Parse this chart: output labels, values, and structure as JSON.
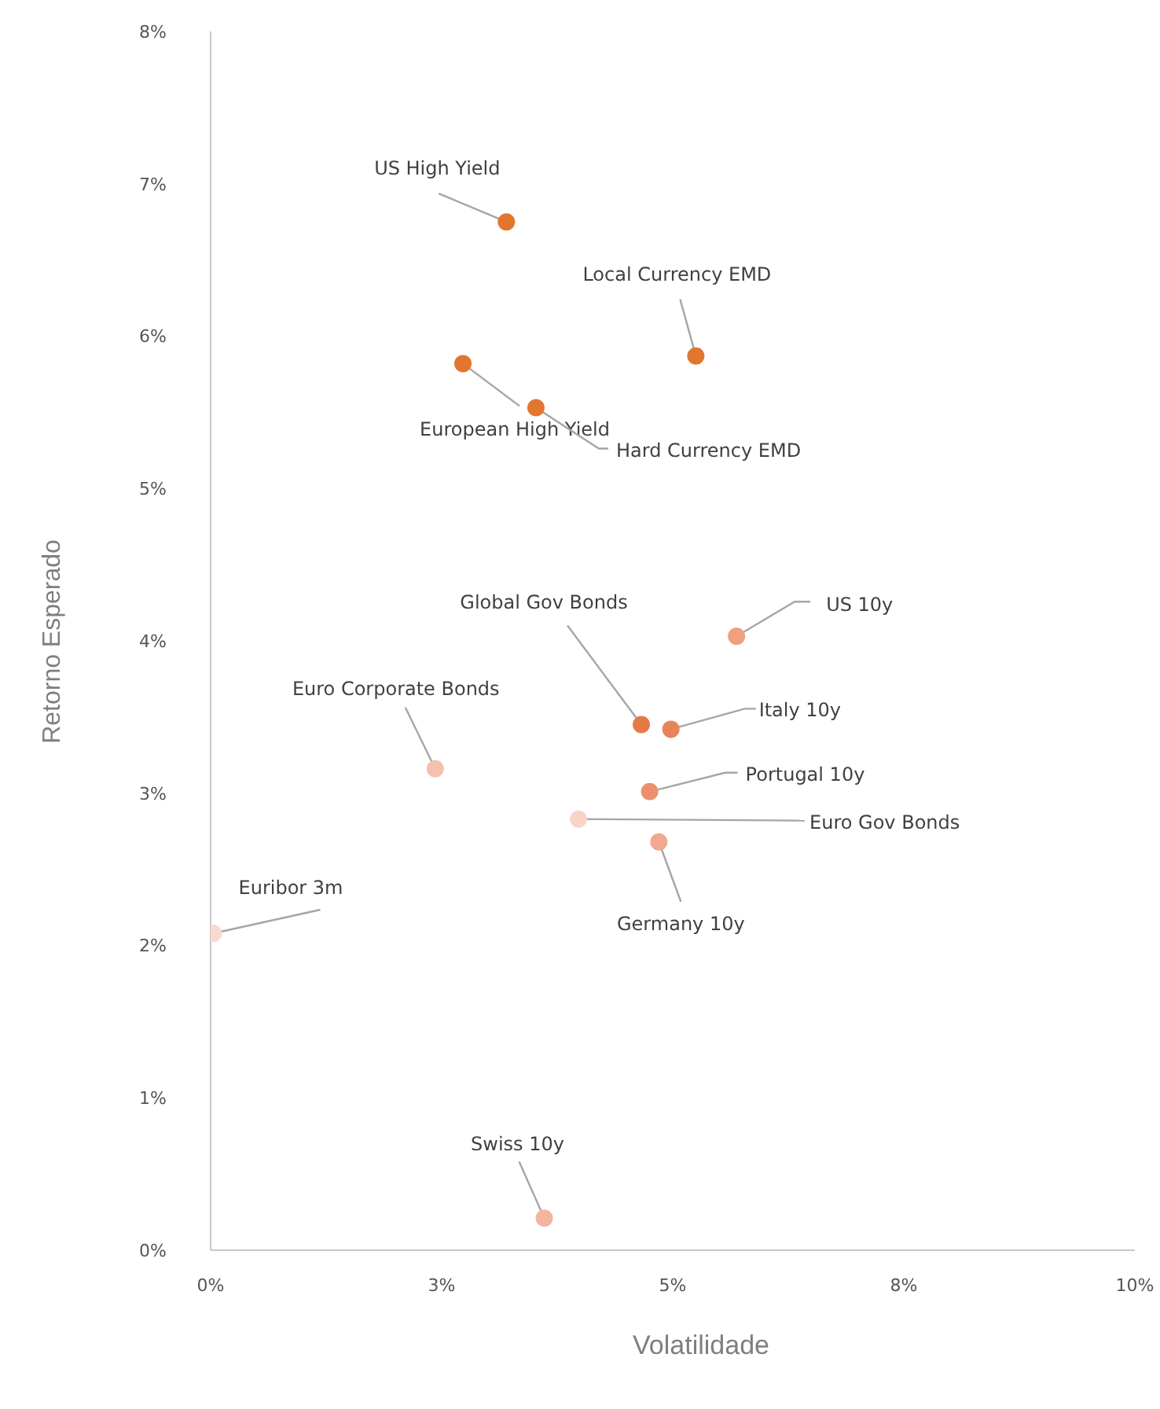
{
  "chart_data": {
    "type": "scatter",
    "xlabel": "Volatilidade",
    "ylabel": "Retorno Esperado",
    "xlim": [
      0,
      10
    ],
    "xticks": [
      {
        "value": 0,
        "label": "0%"
      },
      {
        "value": 2.5,
        "label": "3%"
      },
      {
        "value": 5,
        "label": "5%"
      },
      {
        "value": 7.5,
        "label": "8%"
      },
      {
        "value": 10,
        "label": "10%"
      }
    ],
    "ylim": [
      0,
      8
    ],
    "yticks": [
      {
        "value": 0,
        "label": "0%"
      },
      {
        "value": 1,
        "label": "1%"
      },
      {
        "value": 2,
        "label": "2%"
      },
      {
        "value": 3,
        "label": "3%"
      },
      {
        "value": 4,
        "label": "4%"
      },
      {
        "value": 5,
        "label": "5%"
      },
      {
        "value": 6,
        "label": "6%"
      },
      {
        "value": 7,
        "label": "7%"
      },
      {
        "value": 8,
        "label": "8%"
      }
    ],
    "grid": false,
    "marker": "circle",
    "series": [
      {
        "name": "US High Yield",
        "color": "#e2762f",
        "x": [
          3.2
        ],
        "values": [
          6.75
        ]
      },
      {
        "name": "Local Currency EMD",
        "color": "#e2762f",
        "x": [
          5.25
        ],
        "values": [
          5.87
        ]
      },
      {
        "name": "European High Yield",
        "color": "#e2762f",
        "x": [
          2.73
        ],
        "values": [
          5.82
        ]
      },
      {
        "name": "Hard Currency EMD",
        "color": "#e2762f",
        "x": [
          3.52
        ],
        "values": [
          5.53
        ]
      },
      {
        "name": "US 10y",
        "color": "#eea080",
        "x": [
          5.69
        ],
        "values": [
          4.03
        ]
      },
      {
        "name": "Global Gov Bonds",
        "color": "#e47a45",
        "x": [
          4.66
        ],
        "values": [
          3.45
        ]
      },
      {
        "name": "Italy 10y",
        "color": "#e8845a",
        "x": [
          4.98
        ],
        "values": [
          3.42
        ]
      },
      {
        "name": "Euro Corporate Bonds",
        "color": "#f4c0b0",
        "x": [
          2.43
        ],
        "values": [
          3.16
        ]
      },
      {
        "name": "Portugal 10y",
        "color": "#ec9070",
        "x": [
          4.75
        ],
        "values": [
          3.01
        ]
      },
      {
        "name": "Euro Gov Bonds",
        "color": "#f8d4c8",
        "x": [
          3.98
        ],
        "values": [
          2.83
        ]
      },
      {
        "name": "Germany 10y",
        "color": "#f0a890",
        "x": [
          4.85
        ],
        "values": [
          2.68
        ]
      },
      {
        "name": "Euribor 3m",
        "color": "#fadad0",
        "x": [
          0.03
        ],
        "values": [
          2.08
        ]
      },
      {
        "name": "Swiss 10y",
        "color": "#f4b4a0",
        "x": [
          3.61
        ],
        "values": [
          0.21
        ]
      }
    ]
  }
}
